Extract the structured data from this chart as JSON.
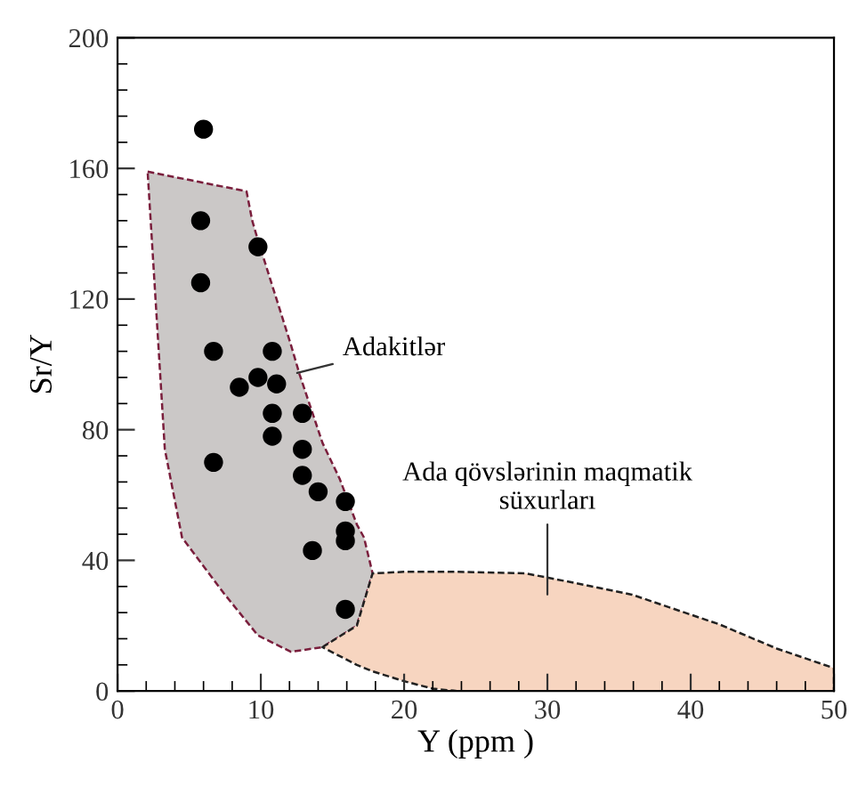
{
  "chart_data": {
    "type": "scatter",
    "xlabel": "Y (ppm )",
    "ylabel": "Sr/Y",
    "xlim": [
      0,
      50
    ],
    "ylim": [
      0,
      200
    ],
    "xticks": [
      0,
      10,
      20,
      30,
      40,
      50
    ],
    "yticks": [
      0,
      40,
      80,
      120,
      160,
      200
    ],
    "grid": false,
    "legend": false,
    "series": [
      {
        "type": "area",
        "color": "#cbc8c7",
        "line_style": "dashed",
        "x": [
          2.1,
          9.0,
          9.4,
          9.8,
          12.1,
          12.7,
          14.3,
          15.5,
          16.7,
          17.2,
          17.8,
          16.7,
          14.3,
          12.1,
          9.8,
          7.4,
          4.5,
          3.3
        ],
        "values": [
          159,
          153,
          144,
          138,
          106,
          97,
          76,
          65,
          51,
          47,
          36,
          20,
          13.4,
          12,
          17,
          30,
          47,
          74
        ]
      },
      {
        "type": "area",
        "color": "#f7d5c0",
        "line_style": "dashed",
        "x": [
          14.3,
          16.7,
          17.8,
          20,
          23.7,
          28.5,
          32,
          35.9,
          42,
          46,
          50,
          50,
          23.7,
          22,
          20,
          17.8,
          16.7
        ],
        "values": [
          13.4,
          20,
          36,
          36.5,
          36.5,
          36,
          33,
          29.5,
          20.4,
          13,
          7,
          0,
          0,
          0.7,
          3,
          6,
          8
        ]
      },
      {
        "color": "#000000",
        "marker": "circle",
        "x": [
          6.0,
          5.8,
          9.8,
          5.8,
          6.7,
          10.8,
          9.8,
          8.5,
          11.1,
          10.8,
          12.9,
          10.8,
          6.7,
          12.9,
          12.9,
          14.0,
          15.9,
          15.9,
          15.9,
          13.6,
          15.9
        ],
        "values": [
          172,
          144,
          136,
          125,
          104,
          104,
          96,
          93,
          94,
          85,
          85,
          78,
          70,
          74,
          66,
          61,
          58,
          49,
          46,
          43,
          25
        ]
      }
    ],
    "annotations": [
      {
        "text": "Adakitlər",
        "x": 12.2,
        "y": 97
      },
      "Ada qövslərinin maqmatik\nsüxurları"
    ]
  }
}
